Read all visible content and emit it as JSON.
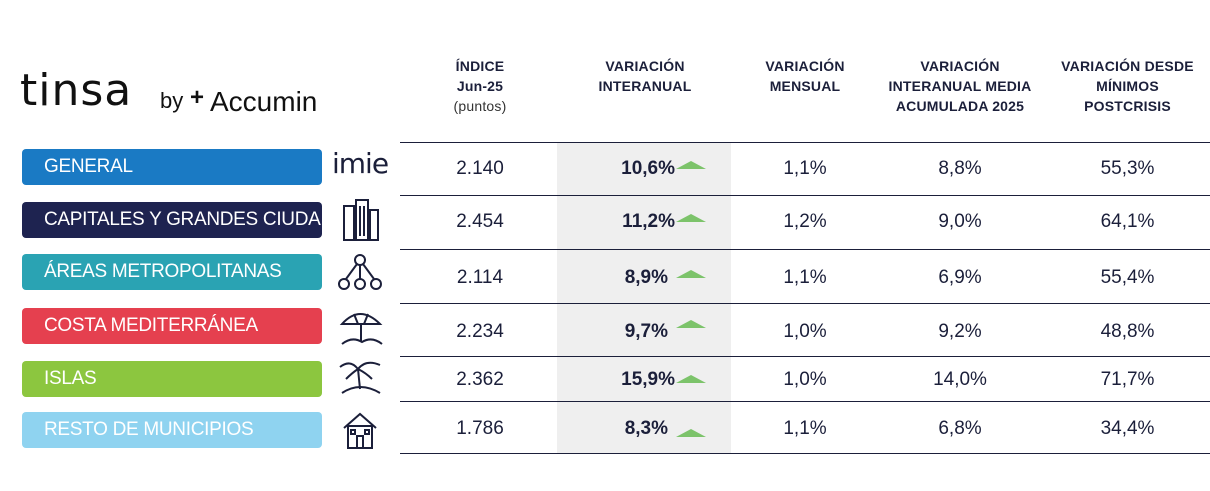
{
  "logo": {
    "brand": "tinsa",
    "by": "by",
    "partner_plus": "+",
    "partner": "Accumin"
  },
  "headers": {
    "indice": [
      "ÍNDICE",
      "Jun-25",
      "(puntos)"
    ],
    "interanual": [
      "VARIACIÓN",
      "INTERANUAL"
    ],
    "mensual": [
      "VARIACIÓN",
      "MENSUAL"
    ],
    "media": [
      "VARIACIÓN",
      "INTERANUAL MEDIA",
      "ACUMULADA 2025"
    ],
    "minimos": [
      "VARIACIÓN DESDE",
      "MÍNIMOS",
      "POSTCRISIS"
    ]
  },
  "rows": [
    {
      "label": "GENERAL",
      "color": "#1a7ac4",
      "icon_text": "imie",
      "icon": "imie-logo-icon",
      "indice": "2.140",
      "interanual": "10,6%",
      "mensual": "1,1%",
      "media": "8,8%",
      "minimos": "55,3%"
    },
    {
      "label": "CAPITALES Y GRANDES CIUDADES",
      "color": "#1e2350",
      "icon": "buildings-icon",
      "indice": "2.454",
      "interanual": "11,2%",
      "mensual": "1,2%",
      "media": "9,0%",
      "minimos": "64,1%"
    },
    {
      "label": "ÁREAS METROPOLITANAS",
      "color": "#2aa3b3",
      "icon": "network-icon",
      "indice": "2.114",
      "interanual": "8,9%",
      "mensual": "1,1%",
      "media": "6,9%",
      "minimos": "55,4%"
    },
    {
      "label": "COSTA MEDITERRÁNEA",
      "color": "#e5404f",
      "icon": "beach-umbrella-icon",
      "indice": "2.234",
      "interanual": "9,7%",
      "mensual": "1,0%",
      "media": "9,2%",
      "minimos": "48,8%"
    },
    {
      "label": "ISLAS",
      "color": "#8cc63f",
      "icon": "palm-island-icon",
      "indice": "2.362",
      "interanual": "15,9%",
      "mensual": "1,0%",
      "media": "14,0%",
      "minimos": "71,7%"
    },
    {
      "label": "RESTO DE MUNICIPIOS",
      "color": "#8fd3f0",
      "icon": "house-icon",
      "indice": "1.786",
      "interanual": "8,3%",
      "mensual": "1,1%",
      "media": "6,8%",
      "minimos": "34,4%"
    }
  ],
  "colors": {
    "accent_arrow": "#7cc36a",
    "text": "#1b1f3a",
    "highlight_column": "#efefef"
  }
}
